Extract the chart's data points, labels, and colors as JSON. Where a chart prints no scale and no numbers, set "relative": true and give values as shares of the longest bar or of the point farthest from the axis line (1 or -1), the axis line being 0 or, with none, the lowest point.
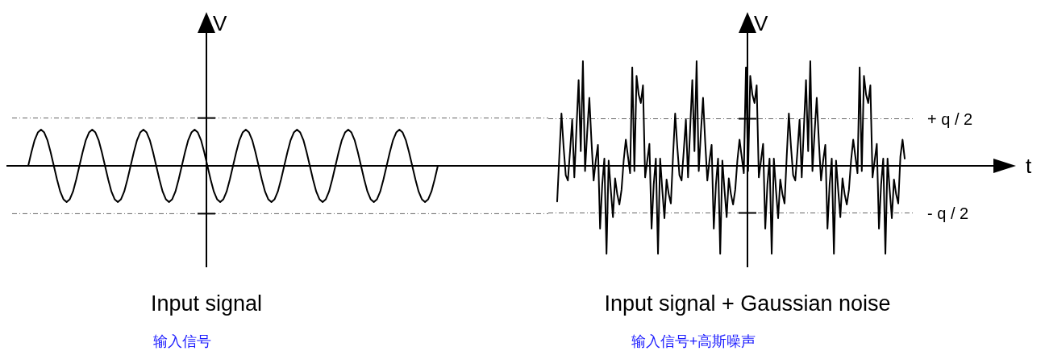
{
  "chart_data": [
    {
      "type": "line",
      "title": "Input signal",
      "subtitle": "输入信号",
      "ylabel": "V",
      "relative": true,
      "categories": [
        null,
        null,
        null,
        null,
        null,
        null,
        null,
        null,
        null,
        null,
        null,
        null,
        null,
        null,
        null,
        null,
        null,
        null,
        null,
        null,
        null,
        null,
        null,
        null,
        null,
        null,
        null,
        null,
        null,
        null,
        null,
        null,
        null,
        null,
        null,
        null,
        null,
        null,
        null,
        null,
        null,
        null,
        null,
        null,
        null,
        null,
        null,
        null,
        null,
        null,
        null,
        null,
        null,
        null,
        null,
        null,
        null,
        null,
        null,
        null,
        null,
        null,
        null,
        null,
        null,
        null,
        null,
        null,
        null,
        null,
        null,
        null,
        null,
        null,
        null,
        null,
        null,
        null,
        null,
        null,
        null,
        null,
        null,
        null,
        null,
        null,
        null,
        null,
        null,
        null,
        null,
        null,
        null,
        null,
        null,
        null,
        null,
        null,
        null,
        null,
        null,
        null,
        null,
        null,
        null,
        null,
        null,
        null,
        null,
        null,
        null,
        null,
        null,
        null,
        null,
        null,
        null,
        null,
        null,
        null,
        null,
        null,
        null,
        null,
        null,
        null,
        null,
        null,
        null
      ],
      "series": [
        {
          "color": "#000000",
          "values": [
            0,
            0.38,
            0.71,
            0.92,
            1,
            0.92,
            0.71,
            0.38,
            0,
            -0.38,
            -0.71,
            -0.92,
            -1,
            -0.92,
            -0.71,
            -0.38,
            0,
            0.38,
            0.71,
            0.92,
            1,
            0.92,
            0.71,
            0.38,
            0,
            -0.38,
            -0.71,
            -0.92,
            -1,
            -0.92,
            -0.71,
            -0.38,
            0,
            0.38,
            0.71,
            0.92,
            1,
            0.92,
            0.71,
            0.38,
            0,
            -0.38,
            -0.71,
            -0.92,
            -1,
            -0.92,
            -0.71,
            -0.38,
            0,
            0.38,
            0.71,
            0.92,
            1,
            0.92,
            0.71,
            0.38,
            0,
            -0.38,
            -0.71,
            -0.92,
            -1,
            -0.92,
            -0.71,
            -0.38,
            0,
            0.38,
            0.71,
            0.92,
            1,
            0.92,
            0.71,
            0.38,
            0,
            -0.38,
            -0.71,
            -0.92,
            -1,
            -0.92,
            -0.71,
            -0.38,
            0,
            0.38,
            0.71,
            0.92,
            1,
            0.92,
            0.71,
            0.38,
            0,
            -0.38,
            -0.71,
            -0.92,
            -1,
            -0.92,
            -0.71,
            -0.38,
            0,
            0.38,
            0.71,
            0.92,
            1,
            0.92,
            0.71,
            0.38,
            0,
            -0.38,
            -0.71,
            -0.92,
            -1,
            -0.92,
            -0.71,
            -0.38,
            0,
            0.38,
            0.71,
            0.92,
            1,
            0.92,
            0.71,
            0.38,
            0,
            -0.38,
            -0.71,
            -0.92,
            -1,
            -0.92,
            -0.71,
            -0.38,
            0
          ]
        }
      ],
      "ref_lines": [
        {
          "axis": "y",
          "value": 1.32
        },
        {
          "axis": "y",
          "value": -1.32
        }
      ]
    },
    {
      "type": "line",
      "title": "Input signal + Gaussian noise",
      "subtitle": "输入信号+高斯噪声",
      "ylabel": "V",
      "xlabel": "t",
      "relative": true,
      "categories": [
        null,
        null,
        null,
        null,
        null,
        null,
        null,
        null,
        null,
        null,
        null,
        null,
        null,
        null,
        null,
        null,
        null,
        null,
        null,
        null,
        null,
        null,
        null,
        null,
        null,
        null,
        null,
        null,
        null,
        null,
        null,
        null,
        null,
        null,
        null,
        null,
        null,
        null,
        null,
        null,
        null,
        null,
        null,
        null,
        null,
        null,
        null,
        null,
        null,
        null,
        null,
        null,
        null,
        null,
        null,
        null,
        null,
        null,
        null,
        null,
        null,
        null,
        null,
        null,
        null,
        null,
        null,
        null,
        null,
        null,
        null,
        null,
        null,
        null,
        null,
        null,
        null,
        null,
        null,
        null,
        null,
        null,
        null,
        null,
        null,
        null,
        null,
        null,
        null,
        null,
        null,
        null,
        null,
        null,
        null,
        null,
        null,
        null,
        null,
        null,
        null,
        null,
        null,
        null,
        null,
        null,
        null,
        null,
        null,
        null,
        null,
        null,
        null,
        null,
        null,
        null,
        null,
        null,
        null,
        null,
        null,
        null,
        null,
        null,
        null,
        null,
        null,
        null,
        null,
        null,
        null,
        null,
        null,
        null,
        null,
        null,
        null,
        null,
        null,
        null,
        null,
        null,
        null,
        null,
        null,
        null,
        null,
        null,
        null,
        null,
        null,
        null,
        null,
        null,
        null,
        null,
        null,
        null,
        null,
        null,
        null,
        null,
        null
      ],
      "series": [
        {
          "color": "#000000",
          "values": [
            -0.34,
            0.09,
            0.5,
            0.18,
            -0.09,
            -0.14,
            0.14,
            0.44,
            -0.11,
            0.36,
            0.82,
            0.14,
            1,
            -0.05,
            0.32,
            0.65,
            0.23,
            -0.14,
            0.05,
            0.2,
            -0.6,
            -0.18,
            0.07,
            -0.84,
            0.05,
            -0.23,
            -0.49,
            -0.12,
            -0.27,
            -0.37,
            -0.23,
            0.05,
            0.25,
            0.09,
            -0.07,
            0.94,
            -0.05,
            0.86,
            0.68,
            0.6,
            0.77,
            -0.11,
            0.05,
            0.21,
            -0.6,
            -0.18,
            0.07,
            -0.84,
            0.07,
            -0.23,
            -0.5,
            -0.13,
            -0.27,
            -0.36,
            0.09,
            0.5,
            0.18,
            -0.09,
            -0.14,
            0.14,
            0.44,
            -0.11,
            0.36,
            0.82,
            0.14,
            1,
            -0.05,
            0.32,
            0.65,
            0.23,
            -0.14,
            0.05,
            0.2,
            -0.6,
            -0.18,
            0.07,
            -0.84,
            0.05,
            -0.23,
            -0.49,
            -0.12,
            -0.27,
            -0.37,
            -0.23,
            0.05,
            0.25,
            0.09,
            -0.07,
            0.94,
            -0.05,
            0.86,
            0.68,
            0.6,
            0.77,
            -0.11,
            0.05,
            0.21,
            -0.6,
            -0.18,
            0.07,
            -0.84,
            0.07,
            -0.23,
            -0.5,
            -0.13,
            -0.27,
            -0.36,
            0.09,
            0.5,
            0.18,
            -0.09,
            -0.14,
            0.14,
            0.44,
            -0.11,
            0.36,
            0.82,
            0.14,
            1,
            -0.05,
            0.32,
            0.65,
            0.23,
            -0.14,
            0.05,
            0.2,
            -0.6,
            -0.18,
            0.07,
            -0.84,
            0.05,
            -0.23,
            -0.49,
            -0.12,
            -0.27,
            -0.37,
            -0.23,
            0.05,
            0.25,
            0.09,
            -0.07,
            0.94,
            -0.05,
            0.86,
            0.68,
            0.6,
            0.77,
            -0.11,
            0.05,
            0.21,
            -0.6,
            -0.18,
            0.07,
            -0.84,
            0.07,
            -0.23,
            -0.5,
            -0.13,
            -0.27,
            -0.36,
            0.09,
            0.25,
            0.07
          ]
        }
      ],
      "ref_lines": [
        {
          "axis": "y",
          "value": 0.45,
          "label": "+ q / 2"
        },
        {
          "axis": "y",
          "value": -0.45,
          "label": "- q / 2"
        }
      ]
    }
  ]
}
